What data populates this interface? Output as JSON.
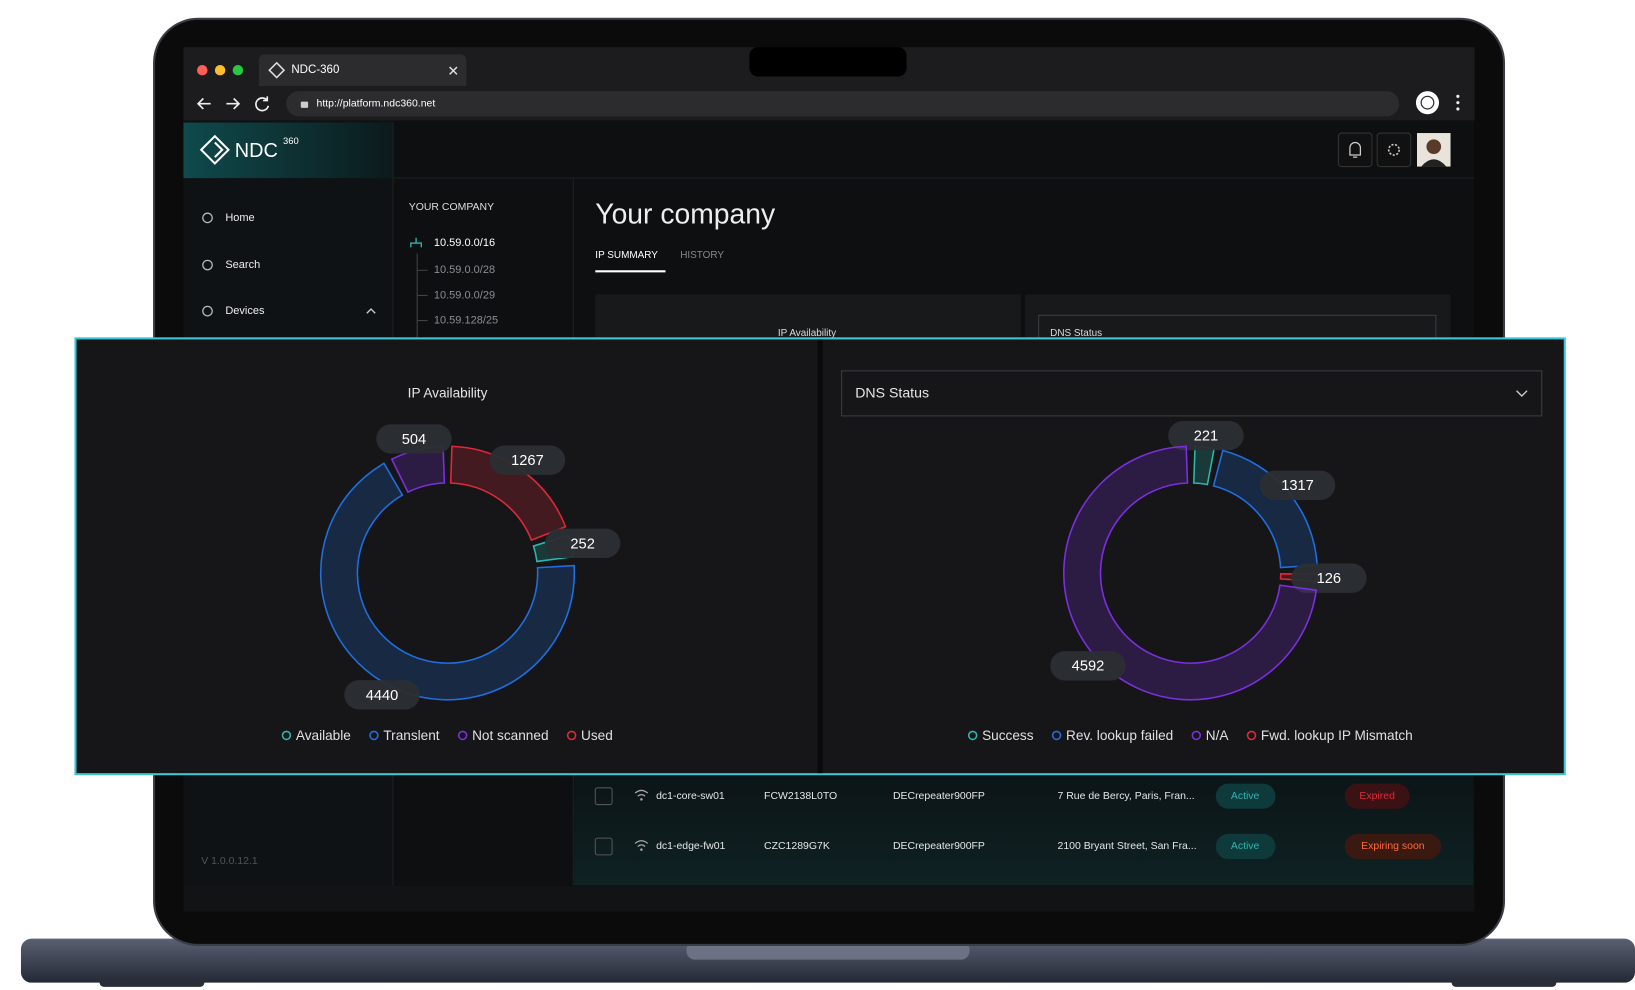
{
  "browser": {
    "tab_title": "NDC-360",
    "url": "http://platform.ndc360.net"
  },
  "app": {
    "logo": "NDC",
    "logo_sup": "360",
    "nav": [
      "Home",
      "Search",
      "Devices"
    ],
    "version": "V 1.0.0.12.1"
  },
  "tree": {
    "heading": "YOUR COMPANY",
    "root": "10.59.0.0/16",
    "children": [
      "10.59.0.0/28",
      "10.59.0.0/29",
      "10.59.128/25"
    ]
  },
  "page": {
    "title": "Your company",
    "tabs": [
      "IP SUMMARY",
      "HISTORY"
    ]
  },
  "charts": [
    {
      "type": "donut",
      "title": "IP Availability",
      "categories": [
        "Available",
        "Translent",
        "Not scanned",
        "Used"
      ],
      "values": [
        252,
        4440,
        504,
        1267
      ],
      "colors": [
        "#2bb6b0",
        "#1f6fe0",
        "#7b2fe0",
        "#e0283a"
      ]
    },
    {
      "type": "donut",
      "title": "DNS Status",
      "categories": [
        "Success",
        "Rev. lookup failed",
        "N/A",
        "Fwd. lookup IP Mismatch"
      ],
      "values": [
        221,
        1317,
        4592,
        126
      ],
      "colors": [
        "#2bb6b0",
        "#1f6fe0",
        "#7b2fe0",
        "#e0283a"
      ]
    }
  ],
  "table": {
    "rows": [
      [
        "dc1-core-sw01",
        "FCW2138L0TO",
        "DECrepeater900FP",
        "7 Rue de Bercy, Paris, Fran...",
        "Active",
        "Expired"
      ],
      [
        "dc1-edge-fw01",
        "CZC1289G7K",
        "DECrepeater900FP",
        "2100 Bryant Street, San Fra...",
        "Active",
        "Expiring soon"
      ]
    ]
  }
}
